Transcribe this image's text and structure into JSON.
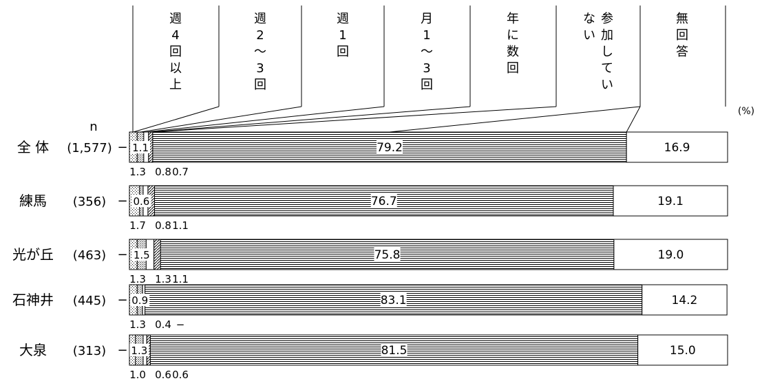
{
  "chart_data": {
    "type": "bar",
    "orientation": "horizontal",
    "stacked": true,
    "percent_axis": true,
    "unit_label": "(%)",
    "n_label": "n",
    "categories": [
      {
        "label": "全 体",
        "n": "(1,577)"
      },
      {
        "label": "練馬",
        "n": "(356)"
      },
      {
        "label": "光が丘",
        "n": "(463)"
      },
      {
        "label": "石神井",
        "n": "(445)"
      },
      {
        "label": "大泉",
        "n": "(313)"
      }
    ],
    "series": [
      {
        "name": "週\n4\n回\n以\n上",
        "pattern": "dots",
        "values": [
          1.3,
          1.7,
          1.3,
          1.3,
          1.0
        ],
        "labels": [
          "1.3",
          "1.7",
          "1.3",
          "1.3",
          "1.0"
        ]
      },
      {
        "name": "週\n2\n〜\n3\n回",
        "pattern": "dense-dots",
        "values": [
          1.1,
          0.6,
          1.5,
          0.9,
          1.3
        ],
        "labels": [
          "1.1",
          "0.6",
          "1.5",
          "0.9",
          "1.3"
        ]
      },
      {
        "name": "週\n1\n回",
        "pattern": "white",
        "values": [
          0.8,
          0.8,
          1.3,
          0.4,
          0.6
        ],
        "labels": [
          "0.8",
          "0.8",
          "1.3",
          "0.4",
          "0.6"
        ]
      },
      {
        "name": "月\n1\n〜\n3\n回",
        "pattern": "diagonal",
        "values": [
          0.7,
          1.1,
          1.1,
          0.0,
          0.6
        ],
        "labels": [
          "0.7",
          "1.1",
          "1.1",
          "−",
          "0.6"
        ]
      },
      {
        "name": "年\nに\n数\n回",
        "pattern": "vertical",
        "values": [
          0.0,
          0.0,
          0.0,
          0.0,
          0.0
        ],
        "labels": [
          "",
          "",
          "",
          "",
          ""
        ]
      },
      {
        "name": "参加していない",
        "pattern": "horizontal",
        "values": [
          79.2,
          76.7,
          75.8,
          83.1,
          81.5
        ],
        "labels": [
          "79.2",
          "76.7",
          "75.8",
          "83.1",
          "81.5"
        ]
      },
      {
        "name": "無\n回\n答",
        "pattern": "white",
        "values": [
          16.9,
          19.1,
          19.0,
          14.2,
          15.0
        ],
        "labels": [
          "16.9",
          "19.1",
          "19.0",
          "14.2",
          "15.0"
        ]
      }
    ],
    "header_nai_col1": "な\nい",
    "header_nai_col2": "参\n加\nし\nて\nい",
    "xlim": [
      0,
      100
    ],
    "grid": false,
    "legend": "top"
  }
}
